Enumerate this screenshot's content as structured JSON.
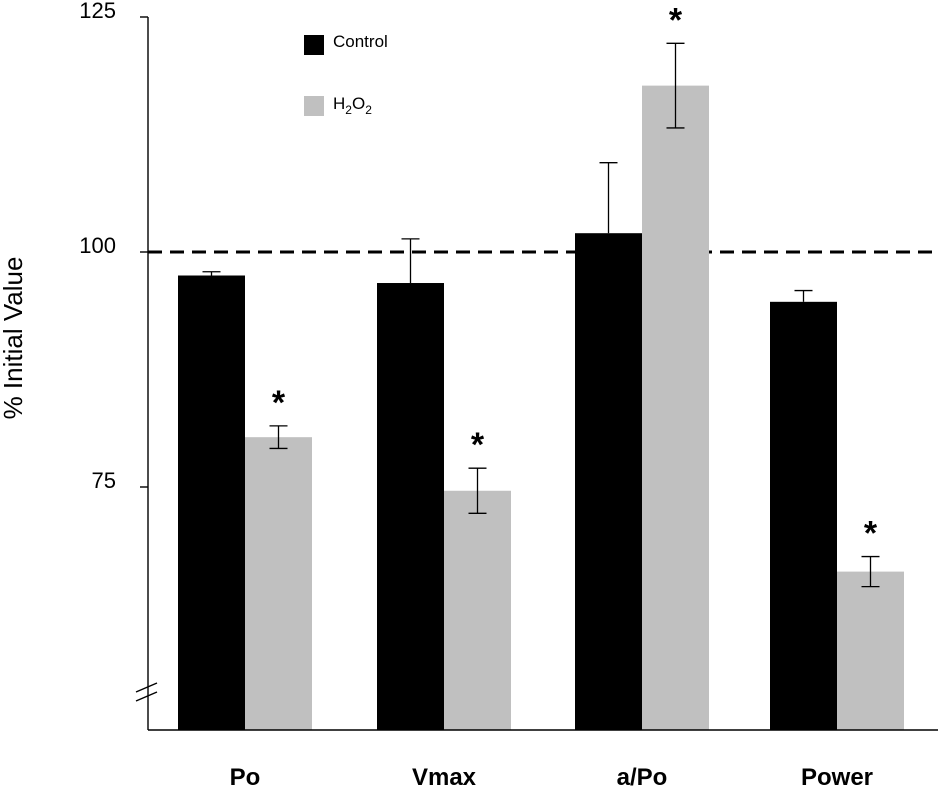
{
  "chart_data": {
    "type": "bar",
    "title": "",
    "xlabel": "",
    "ylabel": "% Initial Value",
    "ylim": [
      50,
      125
    ],
    "yticks": [
      75,
      100,
      125
    ],
    "axis_break": true,
    "reference_line": {
      "value": 100,
      "style": "dashed"
    },
    "categories": [
      "Po",
      "Vmax",
      "a/Po",
      "Power"
    ],
    "series": [
      {
        "name": "Control",
        "color": "#000000",
        "values": [
          97.5,
          96.7,
          102.0,
          94.7
        ],
        "errors": [
          0.4,
          4.7,
          7.5,
          1.2
        ],
        "significant": [
          false,
          false,
          false,
          false
        ]
      },
      {
        "name": "H2O2",
        "legend_main": "H",
        "legend_sub1": "2",
        "legend_mid": "O",
        "legend_sub2": "2",
        "color": "#c0c0c0",
        "values": [
          80.3,
          74.6,
          117.7,
          66.0
        ],
        "errors": [
          1.2,
          2.4,
          4.5,
          1.6
        ],
        "significant": [
          true,
          true,
          true,
          true
        ]
      }
    ],
    "significance_marker": "*",
    "legend_position": "top-left"
  }
}
